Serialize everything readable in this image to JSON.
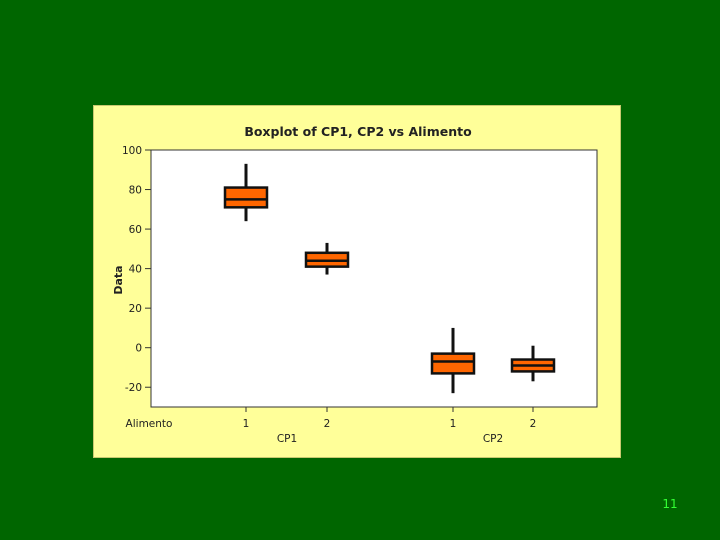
{
  "page": {
    "number": "11"
  },
  "colors": {
    "slide_background": "#006600",
    "panel_background": "#ffff99",
    "plot_background": "#ffffff",
    "box_fill": "#ff6600",
    "box_outline": "#111111",
    "page_number": "#33ff33"
  },
  "chart_data": {
    "type": "boxplot",
    "title": "Boxplot of CP1, CP2 vs Alimento",
    "ylabel": "Data",
    "ylim": [
      -30,
      100
    ],
    "yticks": [
      100,
      80,
      60,
      40,
      20,
      0,
      -20
    ],
    "grid": false,
    "group_axis_label": "Alimento",
    "groups": [
      {
        "label": "CP1",
        "categories": [
          {
            "label": "1",
            "whisker_low": 64,
            "q1": 71,
            "median": 75,
            "q3": 81,
            "whisker_high": 93
          },
          {
            "label": "2",
            "whisker_low": 37,
            "q1": 41,
            "median": 44,
            "q3": 48,
            "whisker_high": 53
          }
        ]
      },
      {
        "label": "CP2",
        "categories": [
          {
            "label": "1",
            "whisker_low": -23,
            "q1": -13,
            "median": -7,
            "q3": -3,
            "whisker_high": 10
          },
          {
            "label": "2",
            "whisker_low": -17,
            "q1": -12,
            "median": -9,
            "q3": -6,
            "whisker_high": 1
          }
        ]
      }
    ]
  }
}
